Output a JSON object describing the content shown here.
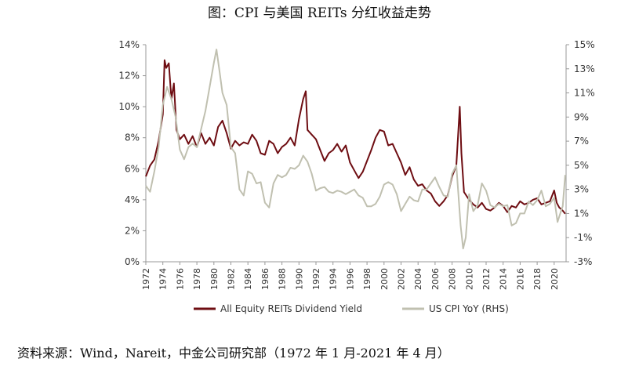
{
  "title": "图：CPI 与美国 REITs 分红收益走势",
  "source": "资料来源：Wind，Nareit，中金公司研究部（1972 年 1 月-2021 年 4 月）",
  "colors": {
    "reit": "#6e0d12",
    "cpi": "#c0c0b0"
  },
  "chart_data": {
    "type": "line",
    "title": "图：CPI 与美国 REITs 分红收益走势",
    "x_tick_labels": [
      "1972",
      "1974",
      "1976",
      "1978",
      "1980",
      "1982",
      "1984",
      "1986",
      "1988",
      "1990",
      "1992",
      "1994",
      "1996",
      "1998",
      "2000",
      "2002",
      "2004",
      "2006",
      "2008",
      "2010",
      "2012",
      "2014",
      "2016",
      "2018",
      "2020"
    ],
    "xlim": [
      1972,
      2021.4
    ],
    "left_axis": {
      "ylim": [
        0,
        14
      ],
      "ticks": [
        0,
        2,
        4,
        6,
        8,
        10,
        12,
        14
      ],
      "tick_labels": [
        "0%",
        "2%",
        "4%",
        "6%",
        "8%",
        "10%",
        "12%",
        "14%"
      ]
    },
    "right_axis": {
      "ylim": [
        -3,
        15
      ],
      "ticks": [
        -3,
        -1,
        1,
        3,
        5,
        7,
        9,
        11,
        13,
        15
      ],
      "tick_labels": [
        "-3%",
        "-1%",
        "1%",
        "3%",
        "5%",
        "7%",
        "9%",
        "11%",
        "13%",
        "15%"
      ]
    },
    "legend_position": "bottom",
    "series": [
      {
        "name": "All Equity REITs Dividend Yield",
        "axis": "left",
        "x": [
          1972,
          1972.5,
          1973,
          1973.5,
          1974,
          1974.2,
          1974.4,
          1974.7,
          1975,
          1975.3,
          1975.6,
          1976,
          1976.5,
          1977,
          1977.5,
          1978,
          1978.5,
          1979,
          1979.5,
          1980,
          1980.5,
          1981,
          1981.5,
          1982,
          1982.5,
          1983,
          1983.5,
          1984,
          1984.5,
          1985,
          1985.5,
          1986,
          1986.5,
          1987,
          1987.5,
          1988,
          1988.5,
          1989,
          1989.5,
          1990,
          1990.5,
          1990.8,
          1991,
          1991.5,
          1992,
          1992.5,
          1993,
          1993.5,
          1994,
          1994.5,
          1995,
          1995.5,
          1996,
          1996.5,
          1997,
          1997.5,
          1998,
          1998.5,
          1999,
          1999.5,
          2000,
          2000.5,
          2001,
          2001.5,
          2002,
          2002.5,
          2003,
          2003.5,
          2004,
          2004.5,
          2005,
          2005.5,
          2006,
          2006.5,
          2007,
          2007.5,
          2008,
          2008.5,
          2008.9,
          2009.1,
          2009.4,
          2010,
          2010.5,
          2011,
          2011.5,
          2012,
          2012.5,
          2013,
          2013.5,
          2014,
          2014.5,
          2015,
          2015.5,
          2016,
          2016.5,
          2017,
          2017.5,
          2018,
          2018.5,
          2019,
          2019.5,
          2020,
          2020.3,
          2020.6,
          2021,
          2021.3
        ],
        "values": [
          5.5,
          6.2,
          6.6,
          7.8,
          9.5,
          13.0,
          12.5,
          12.8,
          10.5,
          11.5,
          8.5,
          7.9,
          8.2,
          7.6,
          8.1,
          7.4,
          8.3,
          7.6,
          8.0,
          7.5,
          8.7,
          9.1,
          8.3,
          7.3,
          7.8,
          7.5,
          7.7,
          7.6,
          8.2,
          7.8,
          7.0,
          6.9,
          7.8,
          7.6,
          7.0,
          7.4,
          7.6,
          8.0,
          7.5,
          9.2,
          10.5,
          11.0,
          8.5,
          8.2,
          7.9,
          7.2,
          6.5,
          7.0,
          7.2,
          7.6,
          7.1,
          7.5,
          6.4,
          5.9,
          5.4,
          5.8,
          6.5,
          7.2,
          8.0,
          8.5,
          8.4,
          7.5,
          7.6,
          7.0,
          6.4,
          5.6,
          6.1,
          5.3,
          4.9,
          5.0,
          4.6,
          4.4,
          3.9,
          3.6,
          3.9,
          4.3,
          5.5,
          6.2,
          10.0,
          7.0,
          4.5,
          4.0,
          3.7,
          3.5,
          3.8,
          3.4,
          3.3,
          3.5,
          3.8,
          3.6,
          3.2,
          3.6,
          3.5,
          3.9,
          3.7,
          3.8,
          4.0,
          4.1,
          3.7,
          3.8,
          3.9,
          4.6,
          3.8,
          3.5,
          3.3,
          3.1
        ]
      },
      {
        "name": "US CPI YoY (RHS)",
        "axis": "right",
        "x": [
          1972,
          1972.5,
          1973,
          1973.5,
          1974,
          1974.5,
          1975,
          1975.5,
          1976,
          1976.5,
          1977,
          1977.5,
          1978,
          1978.5,
          1979,
          1979.5,
          1980,
          1980.3,
          1980.7,
          1981,
          1981.5,
          1982,
          1982.5,
          1983,
          1983.5,
          1984,
          1984.5,
          1985,
          1985.5,
          1986,
          1986.5,
          1987,
          1987.5,
          1988,
          1988.5,
          1989,
          1989.5,
          1990,
          1990.5,
          1991,
          1991.5,
          1992,
          1992.5,
          1993,
          1993.5,
          1994,
          1994.5,
          1995,
          1995.5,
          1996,
          1996.5,
          1997,
          1997.5,
          1998,
          1998.5,
          1999,
          1999.5,
          2000,
          2000.5,
          2001,
          2001.5,
          2002,
          2002.5,
          2003,
          2003.5,
          2004,
          2004.5,
          2005,
          2005.5,
          2006,
          2006.5,
          2007,
          2007.5,
          2008,
          2008.5,
          2009,
          2009.3,
          2009.6,
          2010,
          2010.5,
          2011,
          2011.5,
          2012,
          2012.5,
          2013,
          2013.5,
          2014,
          2014.5,
          2015,
          2015.5,
          2016,
          2016.5,
          2017,
          2017.5,
          2018,
          2018.5,
          2019,
          2019.5,
          2020,
          2020.4,
          2020.8,
          2021,
          2021.3
        ],
        "values": [
          3.3,
          2.8,
          4.5,
          6.5,
          10.0,
          11.5,
          10.5,
          9.0,
          6.3,
          5.5,
          6.5,
          6.8,
          6.5,
          8.0,
          9.5,
          11.5,
          13.5,
          14.6,
          12.6,
          11.0,
          10.0,
          6.5,
          6.0,
          3.0,
          2.5,
          4.5,
          4.3,
          3.5,
          3.6,
          1.9,
          1.5,
          3.5,
          4.2,
          4.0,
          4.2,
          4.8,
          4.7,
          5.0,
          5.8,
          5.3,
          4.3,
          2.9,
          3.1,
          3.2,
          2.8,
          2.7,
          2.9,
          2.8,
          2.6,
          2.8,
          3.0,
          2.5,
          2.3,
          1.6,
          1.6,
          1.8,
          2.4,
          3.4,
          3.6,
          3.4,
          2.6,
          1.2,
          1.8,
          2.4,
          2.1,
          2.0,
          3.0,
          3.0,
          3.5,
          4.0,
          3.2,
          2.5,
          2.4,
          4.3,
          5.0,
          0.0,
          -1.9,
          -1.0,
          2.6,
          1.2,
          1.7,
          3.5,
          2.9,
          1.7,
          1.5,
          1.8,
          1.6,
          1.7,
          0.0,
          0.2,
          1.0,
          1.0,
          2.0,
          1.7,
          2.1,
          2.9,
          1.6,
          1.8,
          2.3,
          0.3,
          1.2,
          1.6,
          4.2
        ]
      }
    ]
  }
}
